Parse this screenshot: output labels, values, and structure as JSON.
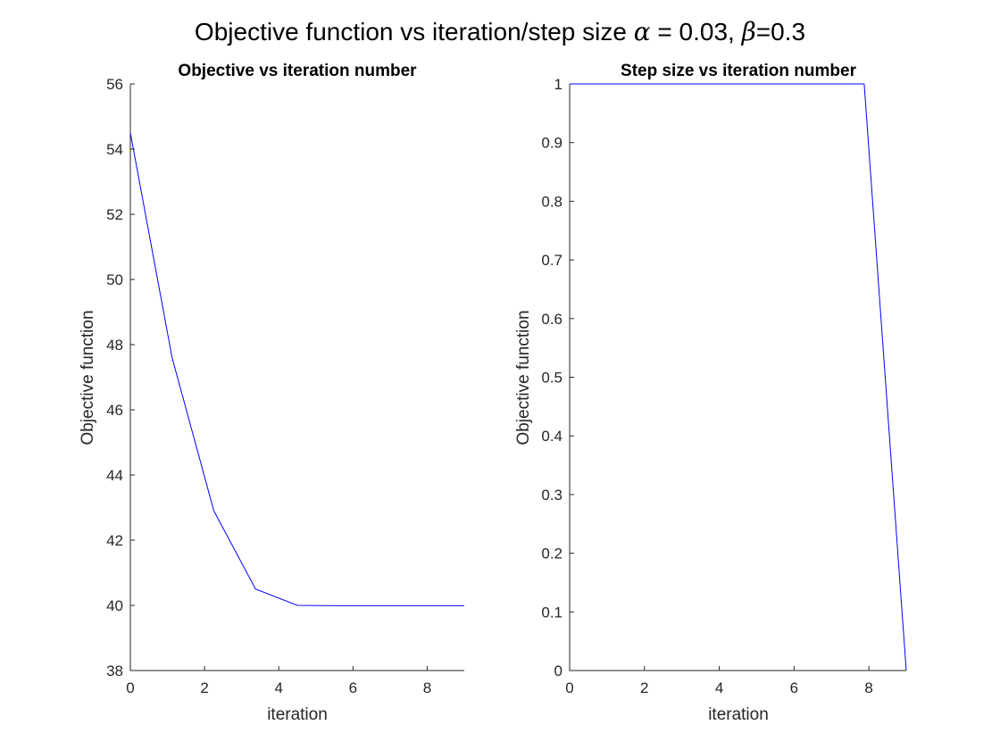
{
  "figure": {
    "suptitle_prefix": "Objective function vs iteration/step size ",
    "alpha_symbol": "α",
    "alpha_text": " = 0.03, ",
    "beta_symbol": "β",
    "beta_text": "=0.3"
  },
  "colors": {
    "series": "#0000ff",
    "axis": "#262626",
    "background": "#ffffff"
  },
  "chart_data": [
    {
      "type": "line",
      "title": "Objective vs iteration number",
      "xlabel": "iteration",
      "ylabel": "Objective function",
      "xlim": [
        0,
        9
      ],
      "ylim": [
        38,
        56
      ],
      "xticks": [
        0,
        2,
        4,
        6,
        8
      ],
      "yticks": [
        38,
        40,
        42,
        44,
        46,
        48,
        50,
        52,
        54,
        56
      ],
      "grid": false,
      "series": [
        {
          "x": [
            0,
            1.125,
            2.25,
            3.375,
            4.5,
            5.625,
            6.75,
            7.875,
            9
          ],
          "values": [
            54.5,
            47.6,
            42.9,
            40.5,
            40.0,
            39.99,
            39.99,
            39.99,
            39.99
          ]
        }
      ]
    },
    {
      "type": "line",
      "title": "Step size vs iteration number",
      "xlabel": "iteration",
      "ylabel": "Objective function",
      "xlim": [
        0,
        9
      ],
      "ylim": [
        0,
        1
      ],
      "xticks": [
        0,
        2,
        4,
        6,
        8
      ],
      "yticks": [
        0,
        0.1,
        0.2,
        0.3,
        0.4,
        0.5,
        0.6,
        0.7,
        0.8,
        0.9,
        1
      ],
      "ytick_labels": [
        "0",
        "0.1",
        "0.2",
        "0.3",
        "0.4",
        "0.5",
        "0.6",
        "0.7",
        "0.8",
        "0.9",
        "1"
      ],
      "grid": false,
      "series": [
        {
          "x": [
            0,
            1.125,
            2.25,
            3.375,
            4.5,
            5.625,
            6.75,
            7.875,
            9
          ],
          "values": [
            1,
            1,
            1,
            1,
            1,
            1,
            1,
            1,
            0
          ]
        }
      ]
    }
  ]
}
